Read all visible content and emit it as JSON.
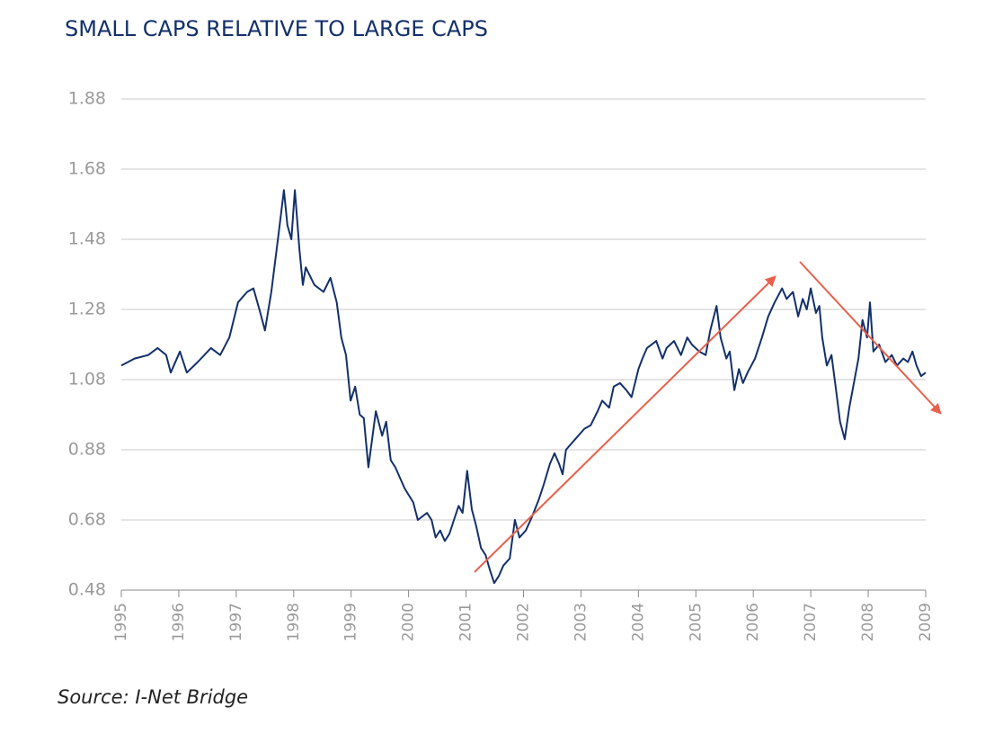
{
  "chart_data": {
    "type": "line",
    "title": "SMALL CAPS RELATIVE TO LARGE CAPS",
    "source": "Source: I-Net Bridge",
    "x": [
      1995.0,
      1995.23,
      1995.47,
      1995.63,
      1995.78,
      1995.86,
      1996.02,
      1996.14,
      1996.33,
      1996.56,
      1996.72,
      1996.88,
      1997.03,
      1997.19,
      1997.3,
      1997.42,
      1997.5,
      1997.61,
      1997.74,
      1997.83,
      1997.89,
      1997.96,
      1998.02,
      1998.1,
      1998.16,
      1998.21,
      1998.36,
      1998.52,
      1998.64,
      1998.75,
      1998.83,
      1998.91,
      1998.99,
      1999.07,
      1999.15,
      1999.22,
      1999.3,
      1999.43,
      1999.54,
      1999.61,
      1999.69,
      1999.77,
      1999.93,
      2000.08,
      2000.16,
      2000.32,
      2000.4,
      2000.47,
      2000.55,
      2000.63,
      2000.71,
      2000.79,
      2000.87,
      2000.94,
      2001.02,
      2001.1,
      2001.18,
      2001.26,
      2001.34,
      2001.41,
      2001.49,
      2001.57,
      2001.65,
      2001.76,
      2001.85,
      2001.93,
      2002.04,
      2002.15,
      2002.27,
      2002.35,
      2002.46,
      2002.54,
      2002.62,
      2002.68,
      2002.74,
      2002.9,
      2003.06,
      2003.17,
      2003.29,
      2003.37,
      2003.49,
      2003.57,
      2003.68,
      2003.79,
      2003.88,
      2004.0,
      2004.07,
      2004.15,
      2004.31,
      2004.42,
      2004.49,
      2004.62,
      2004.74,
      2004.85,
      2004.93,
      2005.06,
      2005.17,
      2005.25,
      2005.36,
      2005.43,
      2005.53,
      2005.59,
      2005.67,
      2005.75,
      2005.82,
      2005.9,
      2006.03,
      2006.15,
      2006.26,
      2006.37,
      2006.5,
      2006.58,
      2006.69,
      2006.78,
      2006.86,
      2006.93,
      2007.0,
      2007.09,
      2007.15,
      2007.2,
      2007.28,
      2007.36,
      2007.44,
      2007.51,
      2007.59,
      2007.67,
      2007.75,
      2007.83,
      2007.9,
      2007.98,
      2008.03,
      2008.09,
      2008.19,
      2008.3,
      2008.41,
      2008.5,
      2008.61,
      2008.69,
      2008.77,
      2008.84,
      2008.92,
      2009.0
    ],
    "series": [
      {
        "color": "#13306b",
        "values": [
          1.12,
          1.14,
          1.15,
          1.17,
          1.15,
          1.1,
          1.16,
          1.1,
          1.13,
          1.17,
          1.15,
          1.2,
          1.3,
          1.33,
          1.34,
          1.27,
          1.22,
          1.33,
          1.5,
          1.62,
          1.52,
          1.48,
          1.62,
          1.45,
          1.35,
          1.4,
          1.35,
          1.33,
          1.37,
          1.3,
          1.2,
          1.15,
          1.02,
          1.06,
          0.98,
          0.97,
          0.83,
          0.99,
          0.92,
          0.96,
          0.85,
          0.83,
          0.77,
          0.73,
          0.68,
          0.7,
          0.68,
          0.63,
          0.65,
          0.62,
          0.64,
          0.68,
          0.72,
          0.7,
          0.82,
          0.71,
          0.66,
          0.6,
          0.58,
          0.54,
          0.5,
          0.52,
          0.55,
          0.57,
          0.68,
          0.63,
          0.65,
          0.69,
          0.74,
          0.78,
          0.84,
          0.87,
          0.84,
          0.81,
          0.88,
          0.91,
          0.94,
          0.95,
          0.99,
          1.02,
          1.0,
          1.06,
          1.07,
          1.05,
          1.03,
          1.11,
          1.14,
          1.17,
          1.19,
          1.14,
          1.17,
          1.19,
          1.15,
          1.2,
          1.18,
          1.16,
          1.15,
          1.22,
          1.29,
          1.2,
          1.14,
          1.16,
          1.05,
          1.11,
          1.07,
          1.1,
          1.14,
          1.2,
          1.26,
          1.3,
          1.34,
          1.31,
          1.33,
          1.26,
          1.31,
          1.28,
          1.34,
          1.27,
          1.29,
          1.2,
          1.12,
          1.15,
          1.05,
          0.96,
          0.91,
          1.0,
          1.07,
          1.14,
          1.25,
          1.2,
          1.3,
          1.16,
          1.18,
          1.13,
          1.15,
          1.12,
          1.14,
          1.13,
          1.16,
          1.12,
          1.09,
          1.1
        ]
      }
    ],
    "xlim": [
      1995,
      2009
    ],
    "xticks": [
      1995,
      1996,
      1997,
      1998,
      1999,
      2000,
      2001,
      2002,
      2003,
      2004,
      2005,
      2006,
      2007,
      2008,
      2009
    ],
    "ylim": [
      0.48,
      1.88
    ],
    "yticks": [
      0.48,
      0.68,
      0.88,
      1.08,
      1.28,
      1.48,
      1.68,
      1.88
    ],
    "grid": true
  }
}
